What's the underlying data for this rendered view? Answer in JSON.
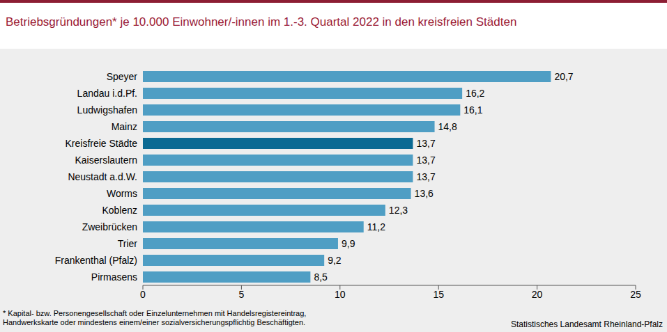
{
  "chart_data": {
    "type": "bar",
    "orientation": "horizontal",
    "title": "Betriebsgründungen* je 10.000 Einwohner/-innen im 1.-3. Quartal 2022 in den kreisfreien Städten",
    "categories": [
      "Speyer",
      "Landau i.d.Pf.",
      "Ludwigshafen",
      "Mainz",
      "Kreisfreie Städte",
      "Kaiserslautern",
      "Neustadt a.d.W.",
      "Worms",
      "Koblenz",
      "Zweibrücken",
      "Trier",
      "Frankenthal (Pfalz)",
      "Pirmasens"
    ],
    "values": [
      20.7,
      16.2,
      16.1,
      14.8,
      13.7,
      13.7,
      13.7,
      13.6,
      12.3,
      11.2,
      9.9,
      9.2,
      8.5
    ],
    "value_labels": [
      "20,7",
      "16,2",
      "16,1",
      "14,8",
      "13,7",
      "13,7",
      "13,7",
      "13,6",
      "12,3",
      "11,2",
      "9,9",
      "9,2",
      "8,5"
    ],
    "colors": [
      "#4f9ec4",
      "#4f9ec4",
      "#4f9ec4",
      "#4f9ec4",
      "#0b6a93",
      "#4f9ec4",
      "#4f9ec4",
      "#4f9ec4",
      "#4f9ec4",
      "#4f9ec4",
      "#4f9ec4",
      "#4f9ec4",
      "#4f9ec4"
    ],
    "xlim": [
      0,
      25
    ],
    "xticks": [
      0,
      5,
      10,
      15,
      20,
      25
    ],
    "grid": false,
    "data_labels": true,
    "footnote": [
      "* Kapital- bzw. Personengesellschaft oder Einzelunternehmen mit Handelsregistereintrag,",
      "Handwerkskarte oder mindestens einem/einer sozialversicherungspflichtig Beschäftigten."
    ],
    "source": "Statistisches Landesamt Rheinland-Pfalz"
  }
}
